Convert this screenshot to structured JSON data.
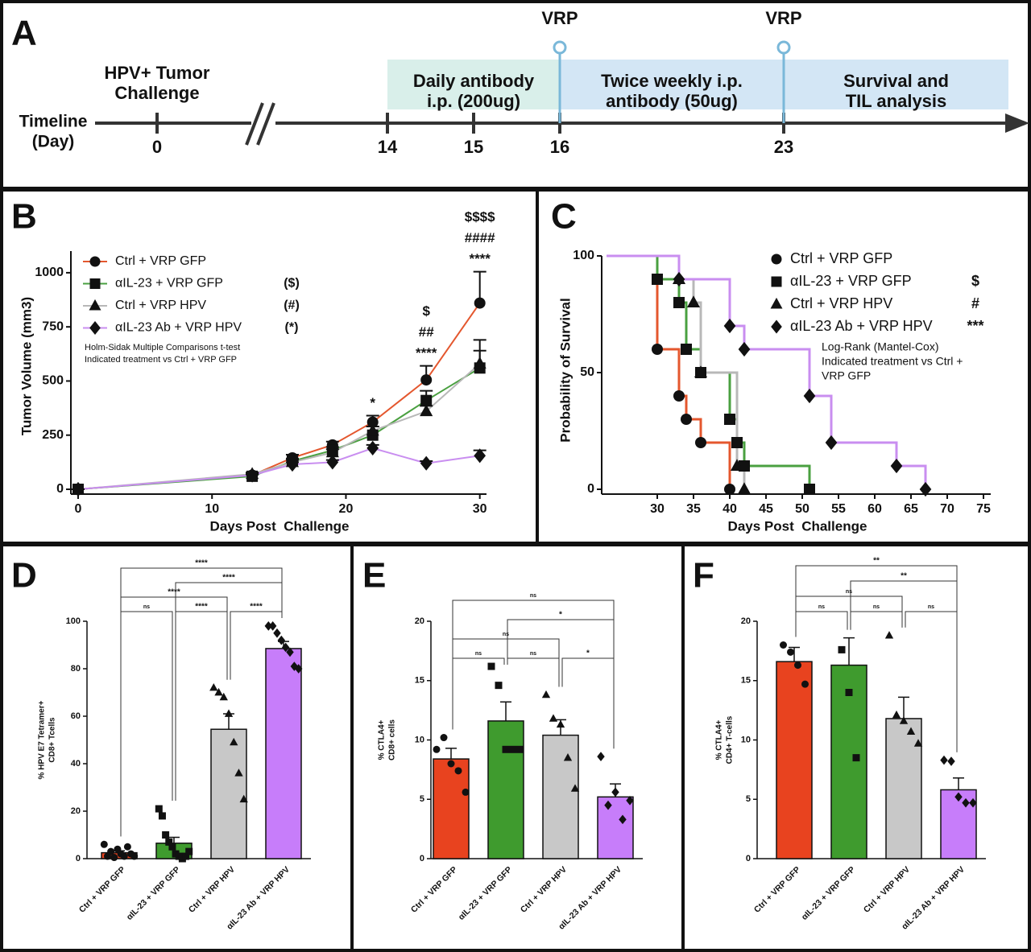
{
  "timeline": {
    "panel": "A",
    "axis_label": [
      "Timeline",
      "(Day)"
    ],
    "ticks": [
      0,
      14,
      15,
      16,
      23
    ],
    "events": [
      {
        "day": 0,
        "label": [
          "HPV+ Tumor",
          "Challenge"
        ]
      }
    ],
    "phases": [
      {
        "start": 14,
        "end": 16,
        "label": [
          "Daily antibody",
          "i.p. (200ug)"
        ],
        "color": "#d9efea"
      },
      {
        "start": 16,
        "end": 23,
        "label": [
          "Twice weekly i.p.",
          "antibody (50ug)"
        ],
        "color": "#d3e6f5"
      },
      {
        "start": 23,
        "end": null,
        "label": [
          "Survival and",
          "TIL analysis"
        ],
        "color": "#d3e6f5"
      }
    ],
    "markers": [
      {
        "day": 16,
        "label": "VRP"
      },
      {
        "day": 23,
        "label": "VRP"
      }
    ]
  },
  "chart_data": [
    {
      "panel": "B",
      "type": "line",
      "x_label": "Days Post  Challenge",
      "y_label": "Tumor Volume (mm3)",
      "x": [
        0,
        13,
        16,
        19,
        22,
        26,
        30
      ],
      "xlim": [
        0,
        30.5
      ],
      "ylim": [
        0,
        1100
      ],
      "xticks": [
        0,
        10,
        20,
        30
      ],
      "yticks": [
        0,
        250,
        500,
        750,
        1000
      ],
      "legend": "upper left",
      "series": [
        {
          "name": "Ctrl + VRP GFP",
          "color": "#e4572e",
          "marker": "circle",
          "legend_note": null,
          "values": [
            0,
            65,
            145,
            205,
            310,
            505,
            860
          ],
          "errors": [
            0,
            10,
            15,
            15,
            30,
            65,
            145
          ]
        },
        {
          "name": "αIL-23 + VRP GFP",
          "color": "#4aa040",
          "marker": "square",
          "legend_note": "($)",
          "values": [
            0,
            60,
            130,
            180,
            250,
            410,
            560
          ],
          "errors": [
            0,
            8,
            12,
            15,
            40,
            45,
            130
          ]
        },
        {
          "name": "Ctrl + VRP HPV",
          "color": "#b8b8b8",
          "marker": "triangle",
          "legend_note": "(#)",
          "values": [
            0,
            70,
            125,
            170,
            270,
            360,
            580
          ],
          "errors": [
            0,
            8,
            10,
            15,
            20,
            25,
            60
          ]
        },
        {
          "name": "αIL-23 Ab + VRP HPV",
          "color": "#c98ef0",
          "marker": "diamond",
          "legend_note": "(*)",
          "values": [
            0,
            65,
            115,
            125,
            190,
            120,
            155
          ],
          "errors": [
            0,
            5,
            10,
            10,
            15,
            10,
            25
          ]
        }
      ],
      "note": [
        "Holm-Sidak Multiple Comparisons t-test",
        "Indicated treatment vs Ctrl + VRP GFP"
      ],
      "annotations": [
        {
          "x": 22,
          "labels": [
            "*"
          ]
        },
        {
          "x": 26,
          "labels": [
            "$",
            "##",
            "****"
          ]
        },
        {
          "x": 30,
          "labels": [
            "$$$$",
            "####",
            "****"
          ]
        }
      ]
    },
    {
      "panel": "C",
      "type": "survival",
      "x_label": "Days Post  Challenge",
      "y_label": "Probability of Survival",
      "xlim": [
        23,
        76
      ],
      "ylim": [
        0,
        100
      ],
      "xticks": [
        30,
        35,
        40,
        45,
        50,
        55,
        60,
        65,
        70,
        75
      ],
      "yticks": [
        0,
        50,
        100
      ],
      "legend": "upper right",
      "series": [
        {
          "name": "Ctrl + VRP GFP",
          "color": "#e4572e",
          "marker": "circle",
          "legend_note": null,
          "x": [
            23,
            30,
            33,
            34,
            36,
            40
          ],
          "values": [
            100,
            60,
            40,
            30,
            20,
            0
          ]
        },
        {
          "name": "αIL-23 + VRP GFP",
          "color": "#4aa040",
          "marker": "square",
          "legend_note": "$",
          "x": [
            23,
            30,
            33,
            34,
            36,
            40,
            41,
            42,
            51
          ],
          "values": [
            100,
            90,
            80,
            60,
            50,
            30,
            20,
            10,
            0
          ]
        },
        {
          "name": "Ctrl + VRP HPV",
          "color": "#b8b8b8",
          "marker": "triangle",
          "legend_note": "#",
          "x": [
            23,
            33,
            35,
            36,
            41,
            42
          ],
          "values": [
            100,
            90,
            80,
            50,
            10,
            0
          ]
        },
        {
          "name": "αIL-23 Ab + VRP HPV",
          "color": "#c98ef0",
          "marker": "diamond",
          "legend_note": "***",
          "x": [
            23,
            33,
            40,
            42,
            51,
            54,
            63,
            67
          ],
          "values": [
            100,
            90,
            70,
            60,
            40,
            20,
            10,
            0
          ]
        }
      ],
      "note": [
        "Log-Rank (Mantel-Cox)",
        "Indicated treatment vs Ctrl +",
        "VRP GFP"
      ]
    },
    {
      "panel": "D",
      "type": "bar",
      "y_label": [
        "% HPV E7 Tetramer+",
        "CD8+ Tcells"
      ],
      "categories": [
        "Ctrl + VRP GFP",
        "αIL-23 + VRP GFP",
        "Ctrl + VRP HPV",
        "αIL-23 Ab + VRP HPV"
      ],
      "values": [
        2.5,
        6.5,
        54.5,
        88.5
      ],
      "errors": [
        0.8,
        2.5,
        6.5,
        3
      ],
      "colors": [
        "#e8431f",
        "#3f9b2e",
        "#c8c8c8",
        "#c77dfa"
      ],
      "markers": [
        "circle",
        "square",
        "triangle",
        "diamond"
      ],
      "points": [
        [
          6,
          1,
          3,
          0.5,
          4,
          2,
          1,
          5,
          2,
          1
        ],
        [
          21,
          18,
          10,
          7,
          5,
          2,
          1,
          0,
          1,
          3
        ],
        [
          72,
          70,
          68,
          61,
          49,
          36,
          25
        ],
        [
          98,
          98,
          95,
          92,
          89,
          87,
          81,
          80
        ]
      ],
      "ylim": [
        0,
        100
      ],
      "yticks": [
        0,
        20,
        40,
        60,
        80,
        100
      ],
      "comparisons": [
        {
          "groups": [
            0,
            1
          ],
          "label": "ns"
        },
        {
          "groups": [
            1,
            2
          ],
          "label": "****"
        },
        {
          "groups": [
            2,
            3
          ],
          "label": "****"
        },
        {
          "groups": [
            0,
            2
          ],
          "label": "****"
        },
        {
          "groups": [
            1,
            3
          ],
          "label": "****"
        },
        {
          "groups": [
            0,
            3
          ],
          "label": "****"
        }
      ]
    },
    {
      "panel": "E",
      "type": "bar",
      "y_label": [
        "% CTLA4+",
        "CD8+ cells"
      ],
      "categories": [
        "Ctrl + VRP GFP",
        "αIL-23 + VRP GFP",
        "Ctrl + VRP HPV",
        "αIL-23 Ab + VRP HPV"
      ],
      "values": [
        8.4,
        11.6,
        10.4,
        5.2
      ],
      "errors": [
        0.9,
        1.6,
        1.3,
        1.1
      ],
      "colors": [
        "#e8431f",
        "#3f9b2e",
        "#c8c8c8",
        "#c77dfa"
      ],
      "markers": [
        "circle",
        "square",
        "triangle",
        "diamond"
      ],
      "points": [
        [
          9.2,
          10.2,
          8.0,
          7.4,
          5.6
        ],
        [
          16.2,
          14.6,
          9.2,
          9.2,
          9.2
        ],
        [
          13.8,
          11.8,
          11.3,
          8.5,
          5.9
        ],
        [
          8.6,
          4.5,
          5.6,
          3.3,
          4.9
        ]
      ],
      "ylim": [
        0,
        20
      ],
      "yticks": [
        0,
        5,
        10,
        15,
        20
      ],
      "comparisons": [
        {
          "groups": [
            0,
            1
          ],
          "label": "ns"
        },
        {
          "groups": [
            1,
            2
          ],
          "label": "ns"
        },
        {
          "groups": [
            2,
            3
          ],
          "label": "*"
        },
        {
          "groups": [
            0,
            2
          ],
          "label": "ns"
        },
        {
          "groups": [
            1,
            3
          ],
          "label": "*"
        },
        {
          "groups": [
            0,
            3
          ],
          "label": "ns"
        }
      ]
    },
    {
      "panel": "F",
      "type": "bar",
      "y_label": [
        "% CTLA4+",
        "CD4+ T-cells"
      ],
      "categories": [
        "Ctrl + VRP GFP",
        "αIL-23 + VRP GFP",
        "Ctrl + VRP HPV",
        "αIL-23 Ab + VRP HPV"
      ],
      "values": [
        16.6,
        16.3,
        11.8,
        5.8
      ],
      "errors": [
        1.2,
        2.3,
        1.8,
        1.0
      ],
      "colors": [
        "#e8431f",
        "#3f9b2e",
        "#c8c8c8",
        "#c77dfa"
      ],
      "markers": [
        "circle",
        "square",
        "triangle",
        "diamond"
      ],
      "points": [
        [
          18.0,
          17.4,
          16.3,
          14.7
        ],
        [
          17.6,
          14.0,
          8.5
        ],
        [
          18.8,
          12.1,
          11.6,
          10.7,
          9.7
        ],
        [
          8.3,
          8.2,
          5.2,
          4.7,
          4.7
        ]
      ],
      "ylim": [
        0,
        20
      ],
      "yticks": [
        0,
        5,
        10,
        15,
        20
      ],
      "comparisons": [
        {
          "groups": [
            0,
            1
          ],
          "label": "ns"
        },
        {
          "groups": [
            1,
            2
          ],
          "label": "ns"
        },
        {
          "groups": [
            2,
            3
          ],
          "label": "ns"
        },
        {
          "groups": [
            0,
            2
          ],
          "label": "ns"
        },
        {
          "groups": [
            1,
            3
          ],
          "label": "**"
        },
        {
          "groups": [
            0,
            3
          ],
          "label": "**"
        }
      ]
    }
  ]
}
